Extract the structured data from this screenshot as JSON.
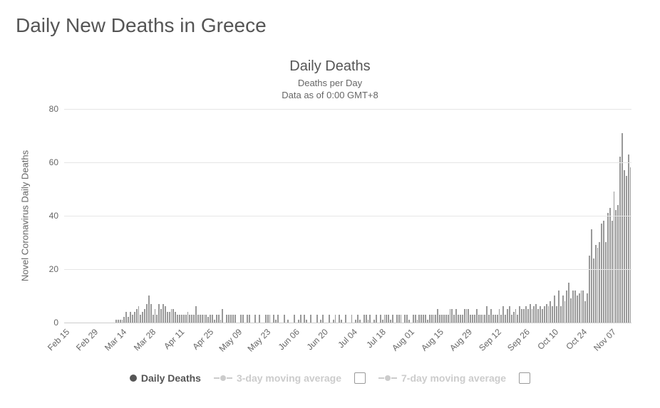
{
  "page_title": "Daily New Deaths in Greece",
  "chart": {
    "type": "bar",
    "title": "Daily Deaths",
    "subtitle_line1": "Deaths per Day",
    "subtitle_line2": "Data as of 0:00 GMT+8",
    "y_axis_title": "Novel Coronavirus Daily Deaths",
    "ylim": [
      0,
      80
    ],
    "ytick_step": 20,
    "yticks": [
      0,
      20,
      40,
      60,
      80
    ],
    "grid_color": "#e6e6e6",
    "baseline_color": "#cccccc",
    "bar_color": "#999999",
    "background_color": "#ffffff",
    "title_fontsize": 20,
    "subtitle_fontsize": 13,
    "axis_label_fontsize": 13,
    "tick_fontsize": 12,
    "x_labels": [
      "Feb 15",
      "Feb 29",
      "Mar 14",
      "Mar 28",
      "Apr 11",
      "Apr 25",
      "May 09",
      "May 23",
      "Jun 06",
      "Jun 20",
      "Jul 04",
      "Jul 18",
      "Aug 01",
      "Aug 15",
      "Aug 29",
      "Sep 12",
      "Sep 26",
      "Oct 10",
      "Oct 24",
      "Nov 07"
    ],
    "x_label_interval_days": 14,
    "start_date": "Feb 15",
    "values": [
      0,
      0,
      0,
      0,
      0,
      0,
      0,
      0,
      0,
      0,
      0,
      0,
      0,
      0,
      0,
      0,
      0,
      0,
      0,
      0,
      0,
      0,
      0,
      0,
      0,
      1,
      1,
      1,
      1,
      2,
      4,
      2,
      4,
      3,
      4,
      5,
      6,
      3,
      4,
      5,
      7,
      10,
      7,
      3,
      5,
      3,
      7,
      5,
      7,
      6,
      4,
      4,
      5,
      5,
      4,
      3,
      3,
      3,
      3,
      3,
      4,
      3,
      3,
      3,
      6,
      3,
      3,
      3,
      3,
      3,
      2,
      3,
      3,
      1,
      3,
      3,
      1,
      5,
      0,
      3,
      3,
      3,
      3,
      3,
      0,
      0,
      3,
      3,
      0,
      3,
      3,
      0,
      0,
      3,
      0,
      3,
      0,
      0,
      3,
      3,
      3,
      0,
      3,
      1,
      3,
      0,
      0,
      3,
      0,
      1,
      0,
      0,
      3,
      0,
      1,
      3,
      0,
      3,
      1,
      0,
      3,
      0,
      0,
      3,
      0,
      1,
      3,
      0,
      0,
      3,
      0,
      1,
      3,
      0,
      3,
      1,
      0,
      3,
      0,
      0,
      3,
      0,
      1,
      3,
      1,
      0,
      3,
      3,
      1,
      3,
      0,
      1,
      3,
      0,
      3,
      1,
      3,
      3,
      3,
      1,
      3,
      0,
      3,
      3,
      3,
      0,
      3,
      3,
      1,
      0,
      3,
      3,
      1,
      3,
      3,
      3,
      3,
      1,
      3,
      3,
      3,
      3,
      5,
      3,
      3,
      3,
      3,
      3,
      5,
      5,
      3,
      5,
      3,
      3,
      3,
      5,
      5,
      5,
      3,
      3,
      3,
      5,
      3,
      3,
      3,
      3,
      6,
      3,
      5,
      3,
      3,
      3,
      5,
      3,
      6,
      3,
      5,
      6,
      3,
      4,
      5,
      3,
      6,
      5,
      5,
      6,
      5,
      7,
      5,
      6,
      7,
      5,
      6,
      5,
      6,
      7,
      6,
      8,
      6,
      10,
      6,
      12,
      6,
      10,
      8,
      12,
      15,
      9,
      12,
      12,
      10,
      11,
      12,
      12,
      8,
      11,
      25,
      35,
      24,
      29,
      28,
      30,
      37,
      38,
      30,
      41,
      43,
      38,
      49,
      42,
      44,
      62,
      71,
      57,
      55,
      63,
      58
    ]
  },
  "legend": {
    "active_color": "#555555",
    "inactive_color": "#cccccc",
    "dot_color_active": "#555555",
    "items": [
      {
        "label": "Daily Deaths",
        "active": true,
        "has_checkbox": false,
        "symbol": "dot"
      },
      {
        "label": "3-day moving average",
        "active": false,
        "has_checkbox": true,
        "symbol": "line"
      },
      {
        "label": "7-day moving average",
        "active": false,
        "has_checkbox": true,
        "symbol": "line"
      }
    ]
  }
}
